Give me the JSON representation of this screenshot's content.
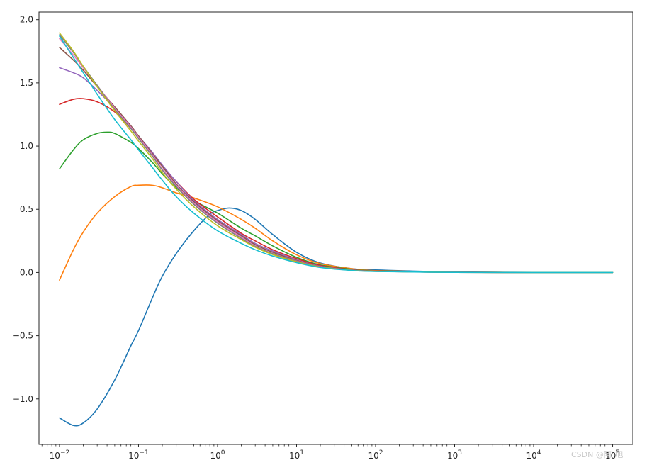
{
  "chart_data": {
    "type": "line",
    "title": "",
    "xlabel": "",
    "ylabel": "",
    "xscale": "log",
    "xlim": [
      0.0055,
      180000
    ],
    "ylim": [
      -1.36,
      2.06
    ],
    "grid": false,
    "legend": "none",
    "x_ticks": [
      {
        "value": 0.01,
        "base": "10",
        "exp": "−2"
      },
      {
        "value": 0.1,
        "base": "10",
        "exp": "−1"
      },
      {
        "value": 1,
        "base": "10",
        "exp": "0"
      },
      {
        "value": 10,
        "base": "10",
        "exp": "1"
      },
      {
        "value": 100,
        "base": "10",
        "exp": "2"
      },
      {
        "value": 1000,
        "base": "10",
        "exp": "3"
      },
      {
        "value": 10000,
        "base": "10",
        "exp": "4"
      },
      {
        "value": 100000,
        "base": "10",
        "exp": "5"
      }
    ],
    "y_ticks": [
      {
        "value": -1.0,
        "label": "−1.0"
      },
      {
        "value": -0.5,
        "label": "−0.5"
      },
      {
        "value": 0.0,
        "label": "0.0"
      },
      {
        "value": 0.5,
        "label": "0.5"
      },
      {
        "value": 1.0,
        "label": "1.0"
      },
      {
        "value": 1.5,
        "label": "1.5"
      },
      {
        "value": 2.0,
        "label": "2.0"
      }
    ],
    "series": [
      {
        "color": "#1f77b4",
        "points": [
          [
            0.01,
            -1.15
          ],
          [
            0.015,
            -1.21
          ],
          [
            0.02,
            -1.19
          ],
          [
            0.03,
            -1.08
          ],
          [
            0.05,
            -0.85
          ],
          [
            0.08,
            -0.58
          ],
          [
            0.1,
            -0.46
          ],
          [
            0.15,
            -0.2
          ],
          [
            0.2,
            -0.03
          ],
          [
            0.3,
            0.15
          ],
          [
            0.5,
            0.33
          ],
          [
            0.8,
            0.46
          ],
          [
            1.0,
            0.49
          ],
          [
            1.4,
            0.51
          ],
          [
            2,
            0.49
          ],
          [
            3,
            0.42
          ],
          [
            5,
            0.3
          ],
          [
            10,
            0.16
          ],
          [
            20,
            0.075
          ],
          [
            50,
            0.03
          ],
          [
            100,
            0.02
          ],
          [
            1000,
            0.004
          ],
          [
            10000,
            0.001
          ],
          [
            100000,
            0.0
          ]
        ]
      },
      {
        "color": "#ff7f0e",
        "points": [
          [
            0.01,
            -0.06
          ],
          [
            0.015,
            0.18
          ],
          [
            0.02,
            0.32
          ],
          [
            0.03,
            0.47
          ],
          [
            0.05,
            0.6
          ],
          [
            0.08,
            0.68
          ],
          [
            0.1,
            0.69
          ],
          [
            0.15,
            0.69
          ],
          [
            0.2,
            0.67
          ],
          [
            0.3,
            0.63
          ],
          [
            0.5,
            0.59
          ],
          [
            1,
            0.52
          ],
          [
            2,
            0.42
          ],
          [
            3,
            0.35
          ],
          [
            5,
            0.25
          ],
          [
            10,
            0.14
          ],
          [
            20,
            0.07
          ],
          [
            50,
            0.03
          ],
          [
            100,
            0.015
          ],
          [
            1000,
            0.003
          ],
          [
            10000,
            0.0005
          ],
          [
            100000,
            0.0
          ]
        ]
      },
      {
        "color": "#2ca02c",
        "points": [
          [
            0.01,
            0.82
          ],
          [
            0.015,
            0.97
          ],
          [
            0.02,
            1.05
          ],
          [
            0.03,
            1.1
          ],
          [
            0.04,
            1.11
          ],
          [
            0.05,
            1.1
          ],
          [
            0.08,
            1.03
          ],
          [
            0.1,
            0.98
          ],
          [
            0.15,
            0.87
          ],
          [
            0.2,
            0.78
          ],
          [
            0.3,
            0.67
          ],
          [
            0.5,
            0.57
          ],
          [
            1,
            0.47
          ],
          [
            2,
            0.35
          ],
          [
            3,
            0.29
          ],
          [
            5,
            0.21
          ],
          [
            10,
            0.12
          ],
          [
            20,
            0.06
          ],
          [
            50,
            0.025
          ],
          [
            100,
            0.012
          ],
          [
            1000,
            0.002
          ],
          [
            10000,
            0.0003
          ],
          [
            100000,
            0.0
          ]
        ]
      },
      {
        "color": "#d62728",
        "points": [
          [
            0.01,
            1.33
          ],
          [
            0.015,
            1.37
          ],
          [
            0.02,
            1.375
          ],
          [
            0.03,
            1.35
          ],
          [
            0.05,
            1.27
          ],
          [
            0.08,
            1.14
          ],
          [
            0.1,
            1.07
          ],
          [
            0.15,
            0.94
          ],
          [
            0.2,
            0.84
          ],
          [
            0.3,
            0.72
          ],
          [
            0.5,
            0.58
          ],
          [
            1,
            0.44
          ],
          [
            2,
            0.31
          ],
          [
            3,
            0.25
          ],
          [
            5,
            0.18
          ],
          [
            10,
            0.11
          ],
          [
            20,
            0.055
          ],
          [
            50,
            0.022
          ],
          [
            100,
            0.011
          ],
          [
            1000,
            0.002
          ],
          [
            10000,
            0.0003
          ],
          [
            100000,
            0.0
          ]
        ]
      },
      {
        "color": "#9467bd",
        "points": [
          [
            0.01,
            1.62
          ],
          [
            0.015,
            1.58
          ],
          [
            0.02,
            1.54
          ],
          [
            0.03,
            1.44
          ],
          [
            0.05,
            1.3
          ],
          [
            0.08,
            1.16
          ],
          [
            0.1,
            1.08
          ],
          [
            0.15,
            0.95
          ],
          [
            0.2,
            0.85
          ],
          [
            0.3,
            0.72
          ],
          [
            0.5,
            0.57
          ],
          [
            1,
            0.42
          ],
          [
            2,
            0.3
          ],
          [
            3,
            0.23
          ],
          [
            5,
            0.17
          ],
          [
            10,
            0.1
          ],
          [
            20,
            0.05
          ],
          [
            50,
            0.02
          ],
          [
            100,
            0.01
          ],
          [
            1000,
            0.002
          ],
          [
            10000,
            0.0003
          ],
          [
            100000,
            0.0
          ]
        ]
      },
      {
        "color": "#8c564b",
        "points": [
          [
            0.01,
            1.78
          ],
          [
            0.015,
            1.68
          ],
          [
            0.02,
            1.6
          ],
          [
            0.03,
            1.47
          ],
          [
            0.05,
            1.31
          ],
          [
            0.08,
            1.16
          ],
          [
            0.1,
            1.08
          ],
          [
            0.15,
            0.94
          ],
          [
            0.2,
            0.84
          ],
          [
            0.3,
            0.7
          ],
          [
            0.5,
            0.56
          ],
          [
            1,
            0.41
          ],
          [
            2,
            0.29
          ],
          [
            3,
            0.22
          ],
          [
            5,
            0.16
          ],
          [
            10,
            0.095
          ],
          [
            20,
            0.048
          ],
          [
            50,
            0.019
          ],
          [
            100,
            0.01
          ],
          [
            1000,
            0.0015
          ],
          [
            10000,
            0.0002
          ],
          [
            100000,
            0.0
          ]
        ]
      },
      {
        "color": "#e377c2",
        "points": [
          [
            0.01,
            1.85
          ],
          [
            0.015,
            1.72
          ],
          [
            0.02,
            1.62
          ],
          [
            0.03,
            1.48
          ],
          [
            0.05,
            1.3
          ],
          [
            0.08,
            1.15
          ],
          [
            0.1,
            1.07
          ],
          [
            0.15,
            0.93
          ],
          [
            0.2,
            0.82
          ],
          [
            0.3,
            0.69
          ],
          [
            0.5,
            0.55
          ],
          [
            1,
            0.4
          ],
          [
            2,
            0.28
          ],
          [
            3,
            0.21
          ],
          [
            5,
            0.15
          ],
          [
            10,
            0.09
          ],
          [
            20,
            0.046
          ],
          [
            50,
            0.018
          ],
          [
            100,
            0.009
          ],
          [
            1000,
            0.0015
          ],
          [
            10000,
            0.0002
          ],
          [
            100000,
            0.0
          ]
        ]
      },
      {
        "color": "#7f7f7f",
        "points": [
          [
            0.01,
            1.88
          ],
          [
            0.015,
            1.74
          ],
          [
            0.02,
            1.63
          ],
          [
            0.03,
            1.48
          ],
          [
            0.05,
            1.29
          ],
          [
            0.08,
            1.14
          ],
          [
            0.1,
            1.06
          ],
          [
            0.15,
            0.92
          ],
          [
            0.2,
            0.81
          ],
          [
            0.3,
            0.68
          ],
          [
            0.5,
            0.54
          ],
          [
            1,
            0.39
          ],
          [
            2,
            0.27
          ],
          [
            3,
            0.205
          ],
          [
            5,
            0.148
          ],
          [
            10,
            0.088
          ],
          [
            20,
            0.045
          ],
          [
            50,
            0.018
          ],
          [
            100,
            0.009
          ],
          [
            1000,
            0.0014
          ],
          [
            10000,
            0.0002
          ],
          [
            100000,
            0.0
          ]
        ]
      },
      {
        "color": "#bcbd22",
        "points": [
          [
            0.01,
            1.895
          ],
          [
            0.015,
            1.75
          ],
          [
            0.02,
            1.63
          ],
          [
            0.03,
            1.47
          ],
          [
            0.05,
            1.28
          ],
          [
            0.08,
            1.12
          ],
          [
            0.1,
            1.04
          ],
          [
            0.15,
            0.9
          ],
          [
            0.2,
            0.79
          ],
          [
            0.3,
            0.66
          ],
          [
            0.5,
            0.52
          ],
          [
            1,
            0.37
          ],
          [
            2,
            0.26
          ],
          [
            3,
            0.2
          ],
          [
            5,
            0.142
          ],
          [
            10,
            0.085
          ],
          [
            20,
            0.043
          ],
          [
            50,
            0.017
          ],
          [
            100,
            0.009
          ],
          [
            1000,
            0.0013
          ],
          [
            10000,
            0.0002
          ],
          [
            100000,
            0.0
          ]
        ]
      },
      {
        "color": "#17becf",
        "points": [
          [
            0.01,
            1.87
          ],
          [
            0.015,
            1.7
          ],
          [
            0.02,
            1.58
          ],
          [
            0.03,
            1.41
          ],
          [
            0.05,
            1.21
          ],
          [
            0.08,
            1.05
          ],
          [
            0.1,
            0.97
          ],
          [
            0.15,
            0.83
          ],
          [
            0.2,
            0.73
          ],
          [
            0.3,
            0.6
          ],
          [
            0.5,
            0.47
          ],
          [
            1,
            0.33
          ],
          [
            2,
            0.23
          ],
          [
            3,
            0.18
          ],
          [
            5,
            0.13
          ],
          [
            10,
            0.078
          ],
          [
            20,
            0.04
          ],
          [
            50,
            0.016
          ],
          [
            100,
            0.008
          ],
          [
            1000,
            0.0012
          ],
          [
            10000,
            0.0002
          ],
          [
            100000,
            0.0
          ]
        ]
      }
    ]
  },
  "watermark": {
    "text": "CSDN @阿_旭"
  }
}
